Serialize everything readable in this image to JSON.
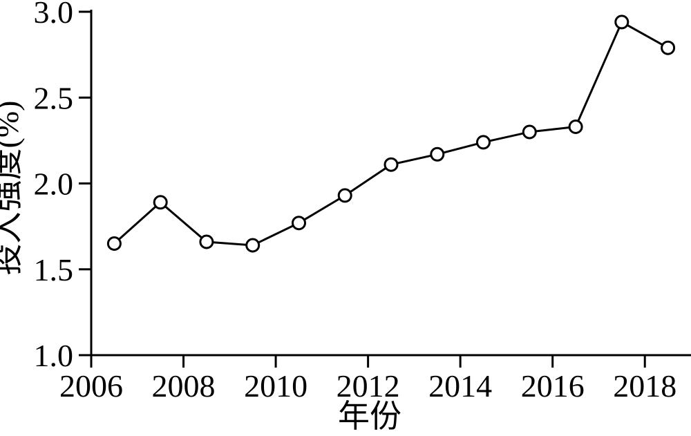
{
  "figure": {
    "background": "#ffffff",
    "foreground": "#000000"
  },
  "chart_data": {
    "type": "line",
    "title": "",
    "xlabel": "年份",
    "ylabel": "投入强度(%)",
    "years": [
      2006,
      2007,
      2008,
      2009,
      2010,
      2011,
      2012,
      2013,
      2014,
      2015,
      2016,
      2017,
      2018
    ],
    "values": [
      1.65,
      1.89,
      1.66,
      1.64,
      1.77,
      1.93,
      2.11,
      2.17,
      2.24,
      2.3,
      2.33,
      2.94,
      2.79
    ],
    "x_plot_offset": 0.5,
    "xlim": [
      2006,
      2019
    ],
    "ylim": [
      1.0,
      3.0
    ],
    "x_tick_labels": [
      "2006",
      "2008",
      "2010",
      "2012",
      "2014",
      "2016",
      "2018"
    ],
    "x_tick_values": [
      2006,
      2008,
      2010,
      2012,
      2014,
      2016,
      2018
    ],
    "y_tick_labels": [
      "1.0",
      "1.5",
      "2.0",
      "2.5",
      "3.0"
    ],
    "y_tick_values": [
      1.0,
      1.5,
      2.0,
      2.5,
      3.0
    ],
    "grid": false,
    "legend": false,
    "marker": "open-circle",
    "line_color": "#000000",
    "marker_fill": "#ffffff",
    "marker_edge": "#000000"
  }
}
